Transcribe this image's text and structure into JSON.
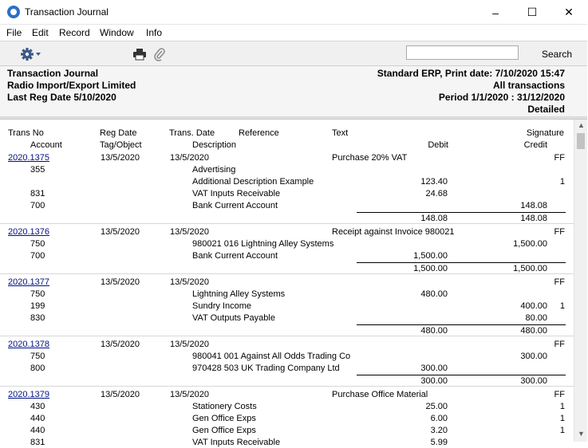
{
  "window": {
    "title": "Transaction Journal",
    "minimize": "–",
    "maximize": "☐",
    "close": "✕"
  },
  "menu": [
    "File",
    "Edit",
    "Record",
    "Window",
    "Info"
  ],
  "toolbar": {
    "search_value": "",
    "search_label": "Search"
  },
  "report_header": {
    "left": [
      "Transaction Journal",
      "Radio Import/Export Limited",
      "Last Reg Date  5/10/2020"
    ],
    "right": [
      "Standard ERP, Print date: 7/10/2020 15:47",
      "All transactions",
      "Period  1/1/2020 : 31/12/2020",
      "Detailed"
    ]
  },
  "columns": {
    "trans_no": "Trans No",
    "reg_date": "Reg Date",
    "trans_date": "Trans. Date",
    "reference": "Reference",
    "text": "Text",
    "signature": "Signature",
    "account": "Account",
    "tag_object": "Tag/Object",
    "description": "Description",
    "debit": "Debit",
    "credit": "Credit"
  },
  "transactions": [
    {
      "no": "2020.1375",
      "reg_date": "13/5/2020",
      "trans_date": "13/5/2020",
      "text": "Purchase 20% VAT",
      "sig": "FF",
      "rows": [
        {
          "acc": "355",
          "desc": "Advertising",
          "debit": "",
          "credit": "",
          "flag": ""
        },
        {
          "acc": "",
          "desc": "Additional Description Example",
          "debit": "123.40",
          "credit": "",
          "flag": "1"
        },
        {
          "acc": "831",
          "desc": "VAT Inputs Receivable",
          "debit": "24.68",
          "credit": "",
          "flag": ""
        },
        {
          "acc": "700",
          "desc": "Bank Current Account",
          "debit": "",
          "credit": "148.08",
          "flag": ""
        }
      ],
      "total_debit": "148.08",
      "total_credit": "148.08"
    },
    {
      "no": "2020.1376",
      "reg_date": "13/5/2020",
      "trans_date": "13/5/2020",
      "text": "Receipt against Invoice 980021",
      "sig": "FF",
      "rows": [
        {
          "acc": "750",
          "desc": "980021 016 Lightning Alley Systems",
          "debit": "",
          "credit": "1,500.00",
          "flag": ""
        },
        {
          "acc": "700",
          "desc": "Bank Current Account",
          "debit": "1,500.00",
          "credit": "",
          "flag": ""
        }
      ],
      "total_debit": "1,500.00",
      "total_credit": "1,500.00"
    },
    {
      "no": "2020.1377",
      "reg_date": "13/5/2020",
      "trans_date": "13/5/2020",
      "text": "",
      "sig": "FF",
      "rows": [
        {
          "acc": "750",
          "desc": "Lightning Alley Systems",
          "debit": "480.00",
          "credit": "",
          "flag": ""
        },
        {
          "acc": "199",
          "desc": "Sundry Income",
          "debit": "",
          "credit": "400.00",
          "flag": "1"
        },
        {
          "acc": "830",
          "desc": "VAT Outputs Payable",
          "debit": "",
          "credit": "80.00",
          "flag": ""
        }
      ],
      "total_debit": "480.00",
      "total_credit": "480.00"
    },
    {
      "no": "2020.1378",
      "reg_date": "13/5/2020",
      "trans_date": "13/5/2020",
      "text": "",
      "sig": "FF",
      "rows": [
        {
          "acc": "750",
          "desc": "980041 001 Against All Odds Trading Co",
          "debit": "",
          "credit": "300.00",
          "flag": ""
        },
        {
          "acc": "800",
          "desc": "970428 503 UK Trading Company Ltd",
          "debit": "300.00",
          "credit": "",
          "flag": ""
        }
      ],
      "total_debit": "300.00",
      "total_credit": "300.00"
    },
    {
      "no": "2020.1379",
      "reg_date": "13/5/2020",
      "trans_date": "13/5/2020",
      "text": "Purchase Office Material",
      "sig": "FF",
      "rows": [
        {
          "acc": "430",
          "desc": "Stationery Costs",
          "debit": "25.00",
          "credit": "",
          "flag": "1"
        },
        {
          "acc": "440",
          "desc": "Gen Office Exps",
          "debit": "6.00",
          "credit": "",
          "flag": "1"
        },
        {
          "acc": "440",
          "desc": "Gen Office Exps",
          "debit": "3.20",
          "credit": "",
          "flag": "1"
        },
        {
          "acc": "831",
          "desc": "VAT Inputs Receivable",
          "debit": "5.99",
          "credit": "",
          "flag": ""
        }
      ],
      "total_debit": "",
      "total_credit": ""
    }
  ]
}
